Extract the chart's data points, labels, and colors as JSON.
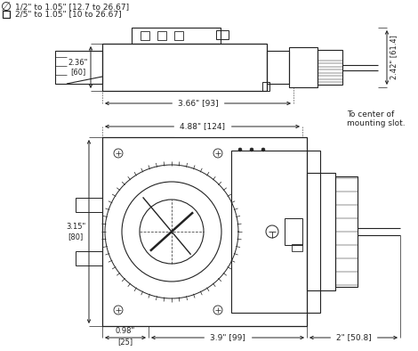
{
  "background_color": "#ffffff",
  "line_color": "#222222",
  "legend": {
    "circle_symbol": "∅",
    "circle_text": "1/2\" to 1.05\" [12.7 to 26.67]",
    "square_text": "2/5\" to 1.05\" [10 to 26.67]"
  },
  "dims": {
    "top_236": "2.36\" [60]",
    "top_242": "2.42\" [61.4]",
    "top_366": "3.66\" [93]",
    "bot_488": "4.88\" [124]",
    "bot_315": "3.15\" [80]",
    "bot_098": "0.98\"",
    "bot_098b": "[25]",
    "bot_39": "3.9\" [99]",
    "bot_2": "2\" [50.8]",
    "to_center": "To center of\nmounting slot."
  }
}
